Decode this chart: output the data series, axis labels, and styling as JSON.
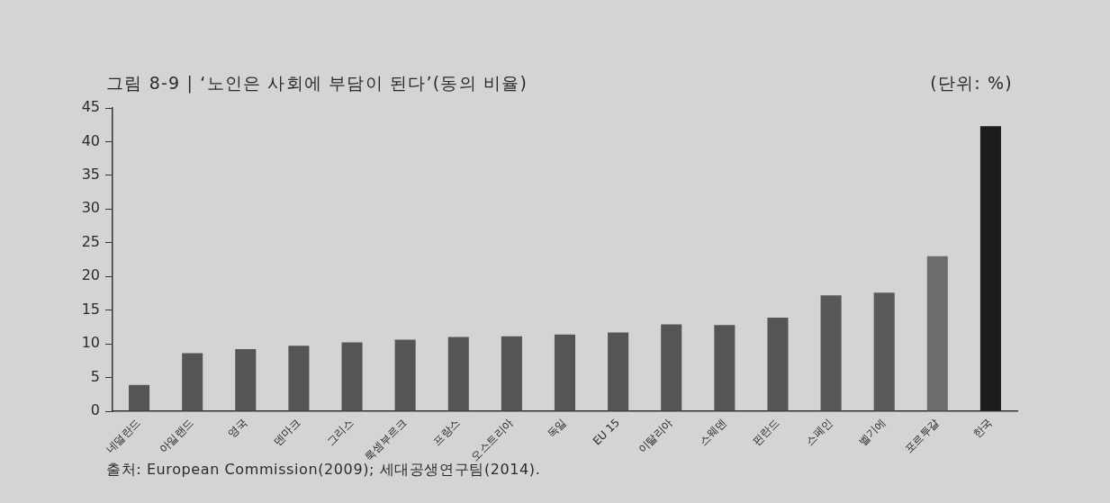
{
  "chart_data": {
    "type": "bar",
    "title": "그림 8-9 | ‘노인은 사회에 부담이 된다’(동의 비율)",
    "categories": [
      "네덜란드",
      "아일랜드",
      "영국",
      "덴마크",
      "그리스",
      "룩셈부르크",
      "프랑스",
      "오스트리아",
      "독일",
      "EU 15",
      "이탈리아",
      "스웨덴",
      "핀란드",
      "스페인",
      "벨기에",
      "포르투갈",
      "한국"
    ],
    "values": [
      3.9,
      8.6,
      9.2,
      9.7,
      10.2,
      10.6,
      11.0,
      11.1,
      11.4,
      11.7,
      12.9,
      12.8,
      13.9,
      17.2,
      17.6,
      23.0,
      42.3
    ],
    "colors": [
      "#555555",
      "#555555",
      "#555555",
      "#555555",
      "#555555",
      "#555555",
      "#555555",
      "#555555",
      "#555555",
      "#555555",
      "#555555",
      "#555555",
      "#555555",
      "#585858",
      "#5a5a5a",
      "#6c6c6c",
      "#1c1c1c"
    ],
    "ylim": [
      0,
      45
    ],
    "yticks": [
      0,
      5,
      10,
      15,
      20,
      25,
      30,
      35,
      40,
      45
    ],
    "grid": false,
    "legend": false,
    "annotations": [
      "(단위: %)",
      "출처: European Commission(2009); 세대공생연구팀(2014)."
    ]
  }
}
